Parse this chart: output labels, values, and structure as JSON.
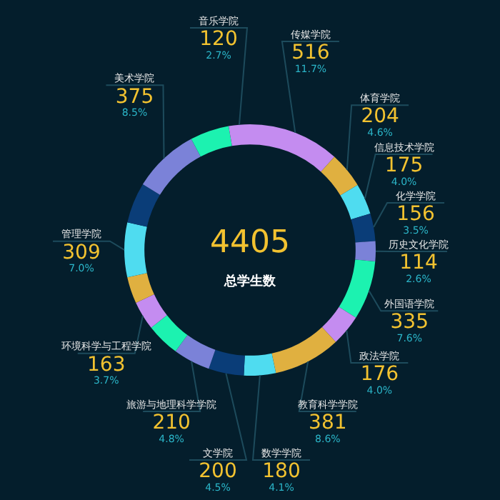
{
  "chart_data": {
    "type": "donut",
    "categories": [
      "传媒学院",
      "体育学院",
      "信息技术学院",
      "化学学院",
      "历史文化学院",
      "外国语学院",
      "政法学院",
      "教育科学学院",
      "数学学院",
      "文学院",
      "旅游与地理科学学院",
      null,
      "环境科学与工程学院",
      null,
      "管理学院",
      null,
      "美术学院",
      null,
      "音乐学院"
    ],
    "values": [
      516,
      204,
      175,
      156,
      114,
      335,
      176,
      381,
      180,
      200,
      210,
      190,
      163,
      150,
      309,
      230,
      375,
      221,
      120
    ],
    "colors": [
      "#c48cf0",
      "#e0b040",
      "#4fdcf0",
      "#0a3d78",
      "#7b82d8",
      "#1cf2b0",
      "#c48cf0",
      "#e0b040",
      "#4fdcf0",
      "#0a3d78",
      "#7b82d8",
      "#1cf2b0",
      "#c48cf0",
      "#e0b040",
      "#4fdcf0",
      "#0a3d78",
      "#7b82d8",
      "#1cf2b0",
      "#c48cf0"
    ],
    "value_labels": [
      "516",
      "204",
      "175",
      "156",
      "114",
      "335",
      "176",
      "381",
      "180",
      "200",
      "210",
      null,
      "163",
      null,
      "309",
      null,
      "375",
      null,
      "120"
    ],
    "annotations": [
      "4405",
      "总学生数",
      {
        "text": "11.7%",
        "x": "传媒学院"
      },
      {
        "text": "4.6%",
        "x": "体育学院"
      },
      {
        "text": "4.0%",
        "x": "信息技术学院"
      },
      {
        "text": "3.5%",
        "x": "化学学院"
      },
      {
        "text": "2.6%",
        "x": "历史文化学院"
      },
      {
        "text": "7.6%",
        "x": "外国语学院"
      },
      {
        "text": "4.0%",
        "x": "政法学院"
      },
      {
        "text": "8.6%",
        "x": "教育科学学院"
      },
      {
        "text": "4.1%",
        "x": "数学学院"
      },
      {
        "text": "4.5%",
        "x": "文学院"
      },
      {
        "text": "4.8%",
        "x": "旅游与地理科学学院"
      },
      {
        "text": "3.7%",
        "x": "环境科学与工程学院"
      },
      {
        "text": "7.0%",
        "x": "管理学院"
      },
      {
        "text": "8.5%",
        "x": "美术学院"
      },
      {
        "text": "2.7%",
        "x": "音乐学院"
      }
    ]
  }
}
